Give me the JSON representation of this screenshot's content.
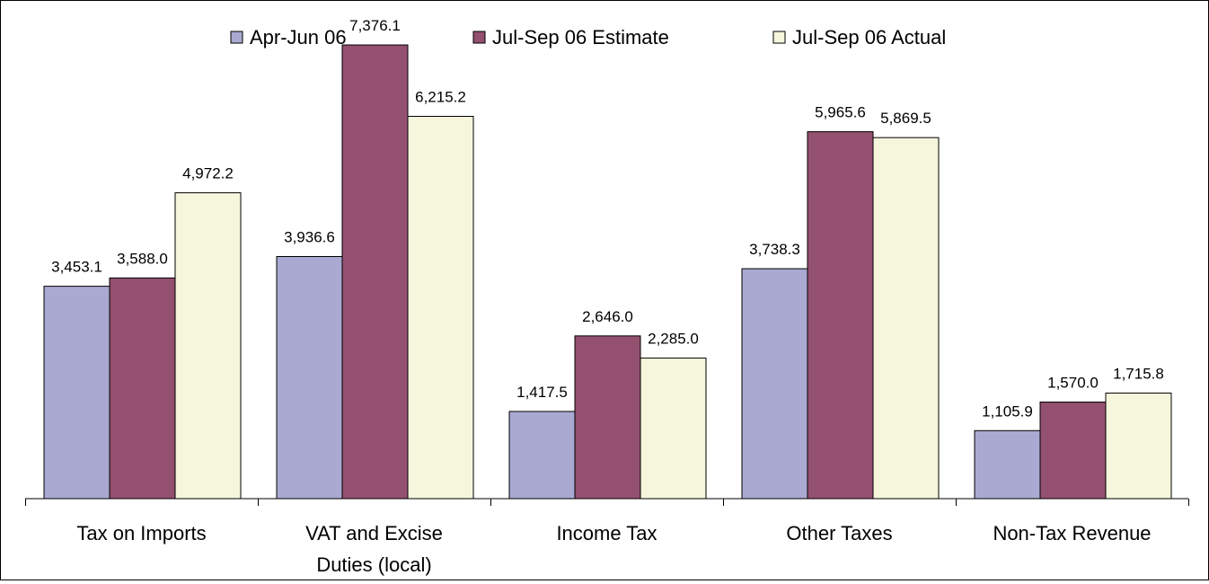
{
  "chart_data": {
    "type": "bar",
    "title": "",
    "xlabel": "",
    "ylabel": "",
    "ylim": [
      0,
      7800
    ],
    "grid": false,
    "legend_position": "top",
    "categories": [
      [
        "Tax on Imports"
      ],
      [
        "VAT and Excise",
        "Duties (local)"
      ],
      [
        "Income Tax"
      ],
      [
        "Other Taxes"
      ],
      [
        "Non-Tax Revenue"
      ]
    ],
    "series": [
      {
        "name": "Apr-Jun 06",
        "color": "#a9a9d1",
        "values": [
          3453.1,
          3936.6,
          1417.5,
          3738.3,
          1105.9
        ],
        "labels": [
          "3,453.1",
          "3,936.6",
          "1,417.5",
          "3,738.3",
          "1,105.9"
        ]
      },
      {
        "name": "Jul-Sep 06 Estimate",
        "color": "#93506f",
        "values": [
          3588.0,
          7376.1,
          2646.0,
          5965.6,
          1570.0
        ],
        "labels": [
          "3,588.0",
          "7,376.1",
          "2,646.0",
          "5,965.6",
          "1,570.0"
        ]
      },
      {
        "name": "Jul-Sep 06 Actual",
        "color": "#f6f6dc",
        "values": [
          4972.2,
          6215.2,
          2285.0,
          5869.5,
          1715.8
        ],
        "labels": [
          "4,972.2",
          "6,215.2",
          "2,285.0",
          "5,869.5",
          "1,715.8"
        ]
      }
    ]
  }
}
